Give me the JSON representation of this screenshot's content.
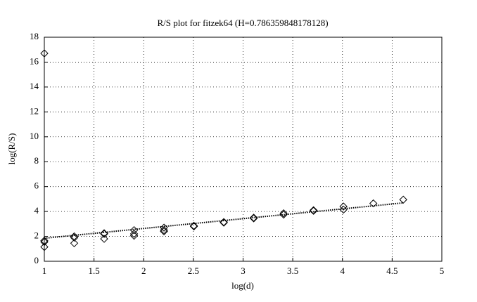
{
  "chart_data": {
    "type": "scatter",
    "title": "R/S plot for fitzek64 (H=0.786359848178128)",
    "x_label": "log(d)",
    "y_label": "log(R/S)",
    "xlim": [
      1,
      5
    ],
    "xticks": [
      1,
      1.5,
      2,
      2.5,
      3,
      3.5,
      4,
      4.5,
      5
    ],
    "ylim": [
      0,
      18
    ],
    "yticks": [
      0,
      2,
      4,
      6,
      8,
      10,
      12,
      14,
      16,
      18
    ],
    "grid": true,
    "series": [
      {
        "color": "#000000",
        "x": [
          1,
          1,
          1,
          1,
          1.301,
          1.301,
          1.301,
          1.602,
          1.602,
          1.602,
          1.903,
          1.903,
          1.903,
          2.204,
          2.204,
          2.204,
          2.505,
          2.505,
          2.806,
          2.806,
          3.107,
          3.107,
          3.408,
          3.408,
          3.709,
          3.709,
          4.01,
          4.01,
          4.311,
          4.612
        ],
        "values": [
          16.7,
          1.65,
          1.55,
          1.15,
          2.0,
          1.9,
          1.45,
          2.25,
          2.2,
          1.8,
          2.5,
          2.2,
          2.05,
          2.7,
          2.5,
          2.4,
          2.85,
          2.8,
          3.15,
          3.1,
          3.5,
          3.45,
          3.85,
          3.75,
          4.1,
          4.05,
          4.4,
          4.15,
          4.65,
          4.95
        ]
      }
    ],
    "fit_line": {
      "color": "#000000",
      "x": [
        1,
        4.612
      ],
      "values": [
        1.85,
        4.69
      ]
    }
  }
}
